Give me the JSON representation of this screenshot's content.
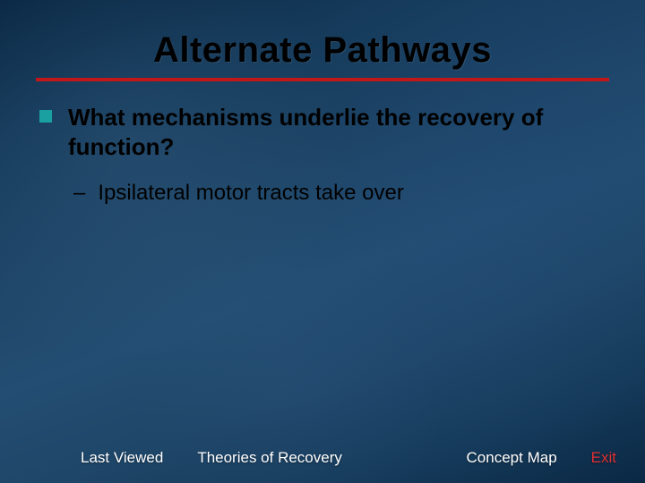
{
  "slide": {
    "title": "Alternate Pathways",
    "bullet": {
      "marker_color": "#1aa0a0",
      "text": "What mechanisms underlie the recovery of function?"
    },
    "subbullet": {
      "dash": "–",
      "text": "Ipsilateral motor tracts take over"
    },
    "divider_color": "#c01818"
  },
  "nav": {
    "last_viewed": "Last Viewed",
    "theories": "Theories of Recovery",
    "concept_map": "Concept Map",
    "exit": "Exit",
    "exit_color": "#e03030"
  },
  "colors": {
    "background_base": "#1a4260",
    "text_primary": "#000000",
    "nav_text": "#ffffff"
  }
}
